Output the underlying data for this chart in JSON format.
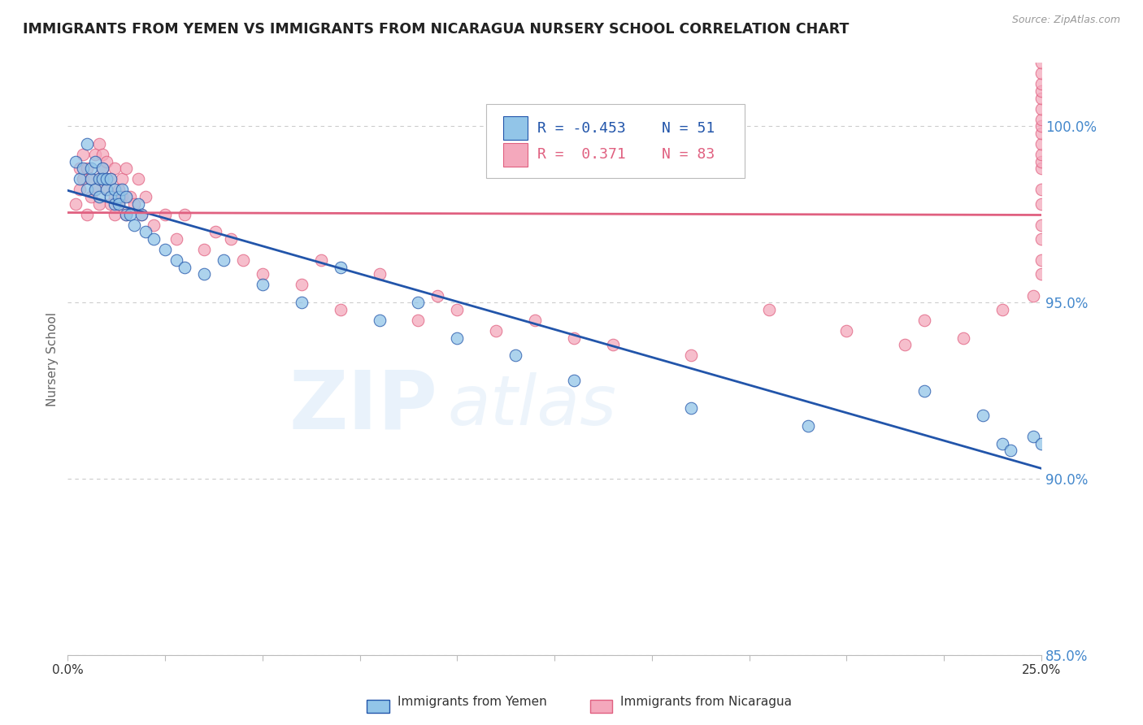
{
  "title": "IMMIGRANTS FROM YEMEN VS IMMIGRANTS FROM NICARAGUA NURSERY SCHOOL CORRELATION CHART",
  "source": "Source: ZipAtlas.com",
  "ylabel": "Nursery School",
  "xlim": [
    0.0,
    0.25
  ],
  "ylim": [
    0.875,
    1.018
  ],
  "yticks": [
    0.85,
    0.9,
    0.95,
    1.0
  ],
  "ytick_labels": [
    "85.0%",
    "90.0%",
    "95.0%",
    "100.0%"
  ],
  "xticks": [
    0.0,
    0.025,
    0.05,
    0.075,
    0.1,
    0.125,
    0.15,
    0.175,
    0.2,
    0.225,
    0.25
  ],
  "xtick_labels_show": [
    "0.0%",
    "",
    "",
    "",
    "",
    "",
    "",
    "",
    "",
    "",
    "25.0%"
  ],
  "legend_r_yemen": "-0.453",
  "legend_n_yemen": "51",
  "legend_r_nicaragua": "0.371",
  "legend_n_nicaragua": "83",
  "color_yemen": "#92C5E8",
  "color_nicaragua": "#F4A8BC",
  "color_trendline_yemen": "#2255AA",
  "color_trendline_nicaragua": "#E06080",
  "background_color": "#FFFFFF",
  "watermark_zip": "ZIP",
  "watermark_atlas": "atlas",
  "yemen_x": [
    0.002,
    0.003,
    0.004,
    0.005,
    0.005,
    0.006,
    0.006,
    0.007,
    0.007,
    0.008,
    0.008,
    0.009,
    0.009,
    0.01,
    0.01,
    0.011,
    0.011,
    0.012,
    0.012,
    0.013,
    0.013,
    0.014,
    0.015,
    0.015,
    0.016,
    0.017,
    0.018,
    0.019,
    0.02,
    0.022,
    0.025,
    0.028,
    0.03,
    0.035,
    0.04,
    0.05,
    0.06,
    0.07,
    0.08,
    0.09,
    0.1,
    0.115,
    0.13,
    0.16,
    0.19,
    0.22,
    0.235,
    0.24,
    0.242,
    0.248,
    0.25
  ],
  "yemen_y": [
    0.99,
    0.985,
    0.988,
    0.982,
    0.995,
    0.985,
    0.988,
    0.982,
    0.99,
    0.985,
    0.98,
    0.988,
    0.985,
    0.982,
    0.985,
    0.98,
    0.985,
    0.978,
    0.982,
    0.98,
    0.978,
    0.982,
    0.975,
    0.98,
    0.975,
    0.972,
    0.978,
    0.975,
    0.97,
    0.968,
    0.965,
    0.962,
    0.96,
    0.958,
    0.962,
    0.955,
    0.95,
    0.96,
    0.945,
    0.95,
    0.94,
    0.935,
    0.928,
    0.92,
    0.915,
    0.925,
    0.918,
    0.91,
    0.908,
    0.912,
    0.91
  ],
  "nicaragua_x": [
    0.002,
    0.003,
    0.003,
    0.004,
    0.004,
    0.005,
    0.005,
    0.006,
    0.006,
    0.007,
    0.007,
    0.008,
    0.008,
    0.008,
    0.009,
    0.009,
    0.009,
    0.01,
    0.01,
    0.01,
    0.011,
    0.011,
    0.012,
    0.012,
    0.012,
    0.013,
    0.013,
    0.014,
    0.014,
    0.015,
    0.015,
    0.016,
    0.017,
    0.018,
    0.019,
    0.02,
    0.022,
    0.025,
    0.028,
    0.03,
    0.035,
    0.038,
    0.042,
    0.045,
    0.05,
    0.06,
    0.065,
    0.07,
    0.08,
    0.09,
    0.095,
    0.1,
    0.11,
    0.12,
    0.13,
    0.14,
    0.16,
    0.18,
    0.2,
    0.215,
    0.22,
    0.23,
    0.24,
    0.248,
    0.25,
    0.25,
    0.25,
    0.25,
    0.25,
    0.25,
    0.25,
    0.25,
    0.25,
    0.25,
    0.25,
    0.25,
    0.25,
    0.25,
    0.25,
    0.25,
    0.25,
    0.25,
    0.25
  ],
  "nicaragua_y": [
    0.978,
    0.988,
    0.982,
    0.985,
    0.992,
    0.988,
    0.975,
    0.985,
    0.98,
    0.992,
    0.982,
    0.985,
    0.978,
    0.995,
    0.988,
    0.985,
    0.992,
    0.982,
    0.99,
    0.985,
    0.978,
    0.985,
    0.98,
    0.988,
    0.975,
    0.982,
    0.978,
    0.985,
    0.98,
    0.975,
    0.988,
    0.98,
    0.978,
    0.985,
    0.975,
    0.98,
    0.972,
    0.975,
    0.968,
    0.975,
    0.965,
    0.97,
    0.968,
    0.962,
    0.958,
    0.955,
    0.962,
    0.948,
    0.958,
    0.945,
    0.952,
    0.948,
    0.942,
    0.945,
    0.94,
    0.938,
    0.935,
    0.948,
    0.942,
    0.938,
    0.945,
    0.94,
    0.948,
    0.952,
    0.958,
    0.962,
    0.968,
    0.972,
    0.978,
    0.982,
    0.988,
    0.99,
    0.992,
    0.995,
    0.998,
    1.0,
    1.002,
    1.005,
    1.008,
    1.01,
    1.012,
    1.015,
    1.018
  ]
}
